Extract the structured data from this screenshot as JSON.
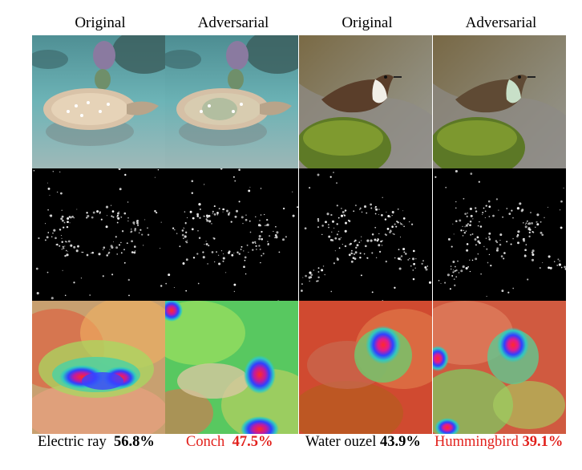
{
  "columns": [
    {
      "header": "Original",
      "label": "Electric ray",
      "confidence": "56.8%",
      "label_color": "#000000"
    },
    {
      "header": "Adversarial",
      "label": "Conch",
      "confidence": "47.5%",
      "label_color": "#e2211c"
    },
    {
      "header": "Original",
      "label": "Water ouzel",
      "confidence": "43.9%",
      "label_color": "#000000"
    },
    {
      "header": "Adversarial",
      "label": "Hummingbird",
      "confidence": "39.1%",
      "label_color": "#e2211c"
    }
  ]
}
